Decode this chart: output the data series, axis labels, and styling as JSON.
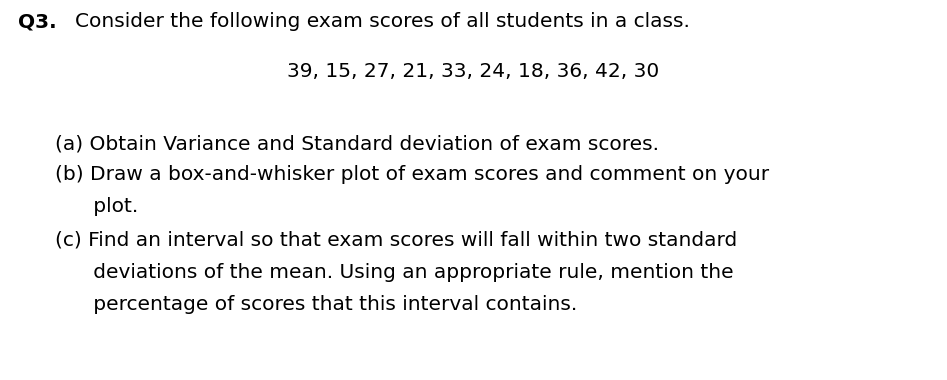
{
  "background_color": "#ffffff",
  "q_label": "Q3.",
  "q_text": "Consider the following exam scores of all students in a class.",
  "scores_line": "39, 15, 27, 21, 33, 24, 18, 36, 42, 30",
  "line_a": "(a) Obtain Variance and Standard deviation of exam scores.",
  "line_b1": "(b) Draw a box-and-whisker plot of exam scores and comment on your",
  "line_b2": "      plot.",
  "line_c1": "(c) Find an interval so that exam scores will fall within two standard",
  "line_c2": "      deviations of the mean. Using an appropriate rule, mention the",
  "line_c3": "      percentage of scores that this interval contains.",
  "font_family": "DejaVu Sans",
  "fs": 14.5,
  "text_color": "#000000",
  "fig_width": 9.47,
  "fig_height": 3.8,
  "dpi": 100
}
